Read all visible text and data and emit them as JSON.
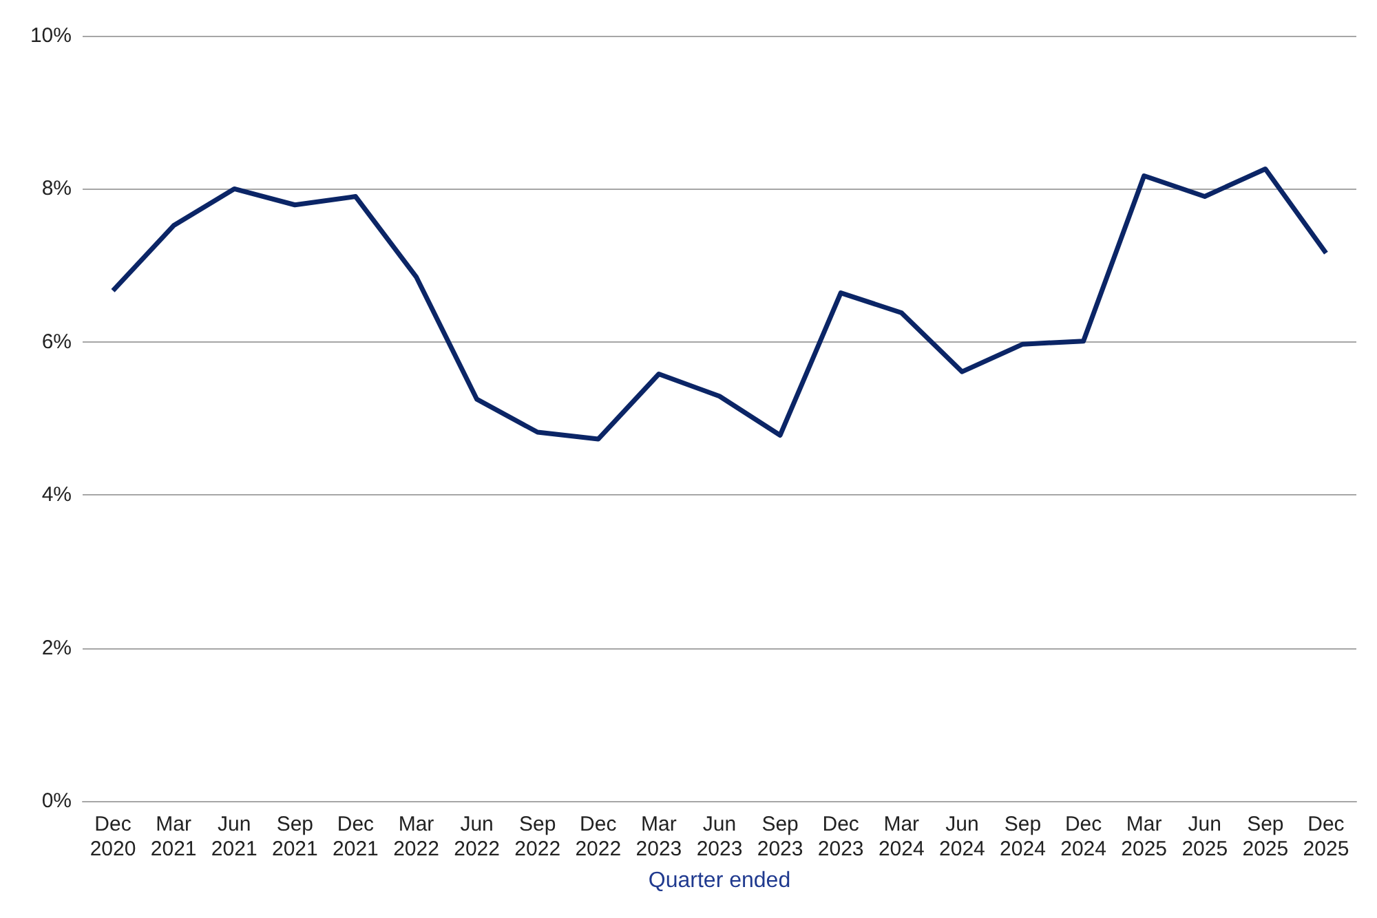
{
  "chart_data": {
    "type": "line",
    "xlabel": "Quarter ended",
    "categories": [
      "Dec 2020",
      "Mar 2021",
      "Jun 2021",
      "Sep 2021",
      "Dec 2021",
      "Mar 2022",
      "Jun 2022",
      "Sep 2022",
      "Dec 2022",
      "Mar 2023",
      "Jun 2023",
      "Sep 2023",
      "Dec 2023",
      "Mar 2024",
      "Jun 2024",
      "Sep 2024",
      "Dec 2024",
      "Mar 2025",
      "Jun 2025",
      "Sep 2025",
      "Dec 2025"
    ],
    "series": [
      {
        "color": "#0b2566",
        "values": [
          6.67,
          7.52,
          8.0,
          7.79,
          7.9,
          6.85,
          5.25,
          4.82,
          4.73,
          5.58,
          5.29,
          4.78,
          6.64,
          6.38,
          5.61,
          5.97,
          6.01,
          8.17,
          7.9,
          8.26,
          7.16
        ]
      }
    ],
    "ylim": [
      0,
      10
    ],
    "yticks": [
      {
        "value": 0,
        "label": "0%"
      },
      {
        "value": 2,
        "label": "2%"
      },
      {
        "value": 4,
        "label": "4%"
      },
      {
        "value": 6,
        "label": "6%"
      },
      {
        "value": 8,
        "label": "8%"
      },
      {
        "value": 10,
        "label": "10%"
      }
    ],
    "grid": "y",
    "marker": "none",
    "line_style": "solid"
  }
}
